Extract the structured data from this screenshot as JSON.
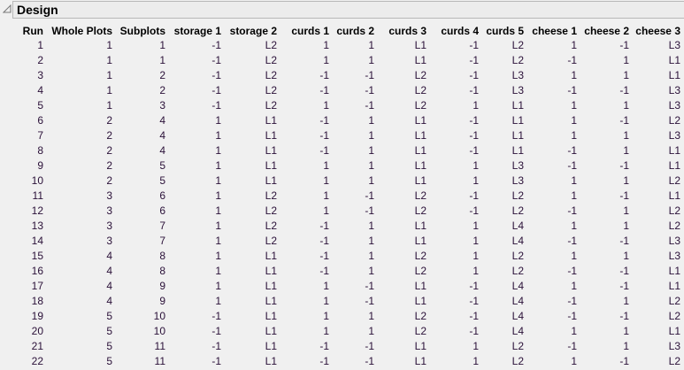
{
  "outline": {
    "title": "Design",
    "icon": "disclosure-triangle-icon"
  },
  "table": {
    "columns": [
      "Run",
      "Whole Plots",
      "Subplots",
      "storage 1",
      "storage 2",
      "curds 1",
      "curds 2",
      "curds 3",
      "curds 4",
      "curds 5",
      "cheese 1",
      "cheese 2",
      "cheese 3"
    ],
    "rows": [
      [
        "1",
        "1",
        "1",
        "-1",
        "L2",
        "1",
        "1",
        "L1",
        "-1",
        "L2",
        "1",
        "-1",
        "L3"
      ],
      [
        "2",
        "1",
        "1",
        "-1",
        "L2",
        "1",
        "1",
        "L1",
        "-1",
        "L2",
        "-1",
        "1",
        "L1"
      ],
      [
        "3",
        "1",
        "2",
        "-1",
        "L2",
        "-1",
        "-1",
        "L2",
        "-1",
        "L3",
        "1",
        "1",
        "L1"
      ],
      [
        "4",
        "1",
        "2",
        "-1",
        "L2",
        "-1",
        "-1",
        "L2",
        "-1",
        "L3",
        "-1",
        "-1",
        "L3"
      ],
      [
        "5",
        "1",
        "3",
        "-1",
        "L2",
        "1",
        "-1",
        "L2",
        "1",
        "L1",
        "1",
        "1",
        "L3"
      ],
      [
        "6",
        "2",
        "4",
        "1",
        "L1",
        "-1",
        "1",
        "L1",
        "-1",
        "L1",
        "1",
        "-1",
        "L2"
      ],
      [
        "7",
        "2",
        "4",
        "1",
        "L1",
        "-1",
        "1",
        "L1",
        "-1",
        "L1",
        "1",
        "1",
        "L3"
      ],
      [
        "8",
        "2",
        "4",
        "1",
        "L1",
        "-1",
        "1",
        "L1",
        "-1",
        "L1",
        "-1",
        "1",
        "L1"
      ],
      [
        "9",
        "2",
        "5",
        "1",
        "L1",
        "1",
        "1",
        "L1",
        "1",
        "L3",
        "-1",
        "-1",
        "L1"
      ],
      [
        "10",
        "2",
        "5",
        "1",
        "L1",
        "1",
        "1",
        "L1",
        "1",
        "L3",
        "1",
        "1",
        "L2"
      ],
      [
        "11",
        "3",
        "6",
        "1",
        "L2",
        "1",
        "-1",
        "L2",
        "-1",
        "L2",
        "1",
        "-1",
        "L1"
      ],
      [
        "12",
        "3",
        "6",
        "1",
        "L2",
        "1",
        "-1",
        "L2",
        "-1",
        "L2",
        "-1",
        "1",
        "L2"
      ],
      [
        "13",
        "3",
        "7",
        "1",
        "L2",
        "-1",
        "1",
        "L1",
        "1",
        "L4",
        "1",
        "1",
        "L2"
      ],
      [
        "14",
        "3",
        "7",
        "1",
        "L2",
        "-1",
        "1",
        "L1",
        "1",
        "L4",
        "-1",
        "-1",
        "L3"
      ],
      [
        "15",
        "4",
        "8",
        "1",
        "L1",
        "-1",
        "1",
        "L2",
        "1",
        "L2",
        "1",
        "1",
        "L3"
      ],
      [
        "16",
        "4",
        "8",
        "1",
        "L1",
        "-1",
        "1",
        "L2",
        "1",
        "L2",
        "-1",
        "-1",
        "L1"
      ],
      [
        "17",
        "4",
        "9",
        "1",
        "L1",
        "1",
        "-1",
        "L1",
        "-1",
        "L4",
        "1",
        "-1",
        "L1"
      ],
      [
        "18",
        "4",
        "9",
        "1",
        "L1",
        "1",
        "-1",
        "L1",
        "-1",
        "L4",
        "-1",
        "1",
        "L2"
      ],
      [
        "19",
        "5",
        "10",
        "-1",
        "L1",
        "1",
        "1",
        "L2",
        "-1",
        "L4",
        "-1",
        "-1",
        "L2"
      ],
      [
        "20",
        "5",
        "10",
        "-1",
        "L1",
        "1",
        "1",
        "L2",
        "-1",
        "L4",
        "1",
        "1",
        "L1"
      ],
      [
        "21",
        "5",
        "11",
        "-1",
        "L1",
        "-1",
        "-1",
        "L1",
        "1",
        "L2",
        "-1",
        "1",
        "L3"
      ],
      [
        "22",
        "5",
        "11",
        "-1",
        "L1",
        "-1",
        "-1",
        "L1",
        "1",
        "L2",
        "1",
        "-1",
        "L2"
      ]
    ]
  }
}
